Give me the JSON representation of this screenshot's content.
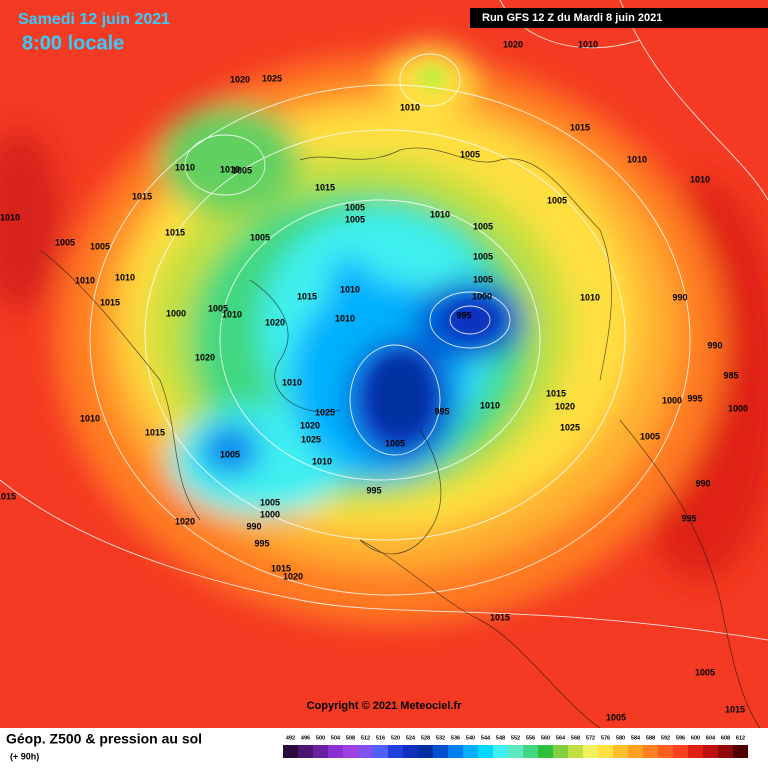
{
  "header": {
    "date": "Samedi 12 juin 2021",
    "time": "8:00 locale",
    "run": "Run GFS 12 Z du Mardi 8 juin 2021"
  },
  "map": {
    "pressure_labels": [
      1020,
      1010,
      1020,
      1025,
      1010,
      1015,
      1005,
      1010,
      1010,
      1010,
      1005,
      1015,
      1010,
      1015,
      1005,
      1005,
      1005,
      1010,
      1010,
      1005,
      1005,
      1005,
      1005,
      1015,
      1005,
      1010,
      1010,
      1005,
      1015,
      1010,
      1015,
      1000,
      1010,
      990,
      1000,
      1005,
      1010,
      1010,
      995,
      1020,
      990,
      1020,
      985,
      1010,
      1015,
      1000,
      995,
      1000,
      1020,
      1010,
      995,
      1010,
      1025,
      1020,
      1025,
      1015,
      1025,
      1005,
      1005,
      1005,
      1010,
      990,
      995,
      1015,
      1005,
      1000,
      995,
      1020,
      990,
      995,
      1015,
      1020,
      1015,
      1005,
      1015,
      1005
    ]
  },
  "copyright": "Copyright © 2021 Meteociel.fr",
  "legend": {
    "title": "Géop. Z500 & pression au sol",
    "subtitle": "(+ 90h)",
    "scale": [
      492,
      496,
      500,
      504,
      508,
      512,
      516,
      520,
      524,
      528,
      532,
      536,
      540,
      544,
      548,
      552,
      556,
      560,
      564,
      568,
      572,
      576,
      580,
      584,
      588,
      592,
      596,
      600,
      604,
      608,
      612
    ],
    "colors": [
      "#2b0a3d",
      "#4b1670",
      "#6a1fa0",
      "#8a2fd0",
      "#a040e0",
      "#8050f0",
      "#5060ff",
      "#2040e0",
      "#1030c0",
      "#0030a0",
      "#0050d0",
      "#0080f0",
      "#00b0ff",
      "#00d8ff",
      "#40f0f0",
      "#60e8c0",
      "#40d880",
      "#30c040",
      "#80d040",
      "#c0e040",
      "#f0f060",
      "#ffe040",
      "#ffc030",
      "#ffa020",
      "#ff8020",
      "#ff6020",
      "#ff4020",
      "#e02010",
      "#c01010",
      "#900808",
      "#500000"
    ]
  }
}
